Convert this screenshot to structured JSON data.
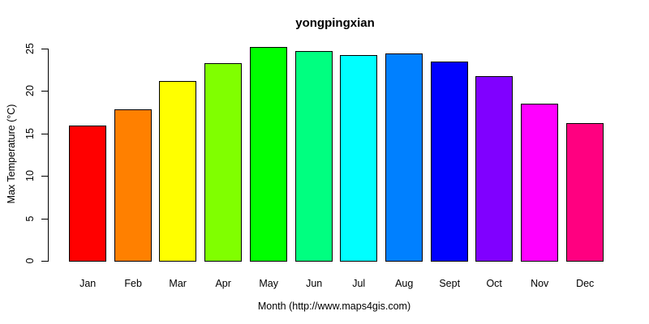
{
  "chart_data": {
    "type": "bar",
    "title": "yongpingxian",
    "xlabel": "Month (http://www.maps4gis.com)",
    "ylabel": "Max Temperature (°C)",
    "categories": [
      "Jan",
      "Feb",
      "Mar",
      "Apr",
      "May",
      "Jun",
      "Jul",
      "Aug",
      "Sept",
      "Oct",
      "Nov",
      "Dec"
    ],
    "values": [
      15.9,
      17.8,
      21.1,
      23.2,
      25.1,
      24.7,
      24.2,
      24.4,
      23.4,
      21.7,
      18.5,
      16.2
    ],
    "colors": [
      "#FF0000",
      "#FF8000",
      "#FFFF00",
      "#80FF00",
      "#00FF00",
      "#00FF80",
      "#00FFFF",
      "#0080FF",
      "#0000FF",
      "#8000FF",
      "#FF00FF",
      "#FF0080"
    ],
    "yticks": [
      0,
      5,
      10,
      15,
      20,
      25
    ],
    "ylim": [
      0,
      25
    ],
    "grid": false,
    "legend": null,
    "bar_border_color": "#000000",
    "background_color": "#FFFFFF"
  }
}
